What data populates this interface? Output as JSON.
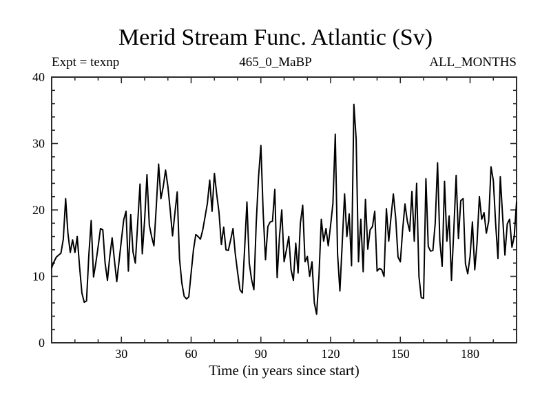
{
  "chart_data": {
    "type": "line",
    "title": "Merid Stream Func. Atlantic (Sv)",
    "annotations": {
      "left": "Expt = texnp",
      "center": "465_0_MaBP",
      "right": "ALL_MONTHS"
    },
    "xlabel": "Time (in years since start)",
    "ylabel": "",
    "xlim": [
      0,
      200
    ],
    "ylim": [
      0,
      40
    ],
    "x_major_ticks": [
      30,
      60,
      90,
      120,
      150,
      180
    ],
    "x_minor_interval": 10,
    "y_major_ticks": [
      0,
      10,
      20,
      30,
      40
    ],
    "y_minor_interval": 2,
    "grid": false,
    "legend": "none",
    "background_color": "#ffffff",
    "line_color": "#000000",
    "axis_color": "#2b2b2b",
    "series": [
      {
        "name": "meridional_stream_function_sv",
        "x_start": 0,
        "x_step": 1,
        "values": [
          11.3,
          12.2,
          12.9,
          13.2,
          13.5,
          15.6,
          21.7,
          16.5,
          13.6,
          15.5,
          13.6,
          16.0,
          11.5,
          7.5,
          6.1,
          6.3,
          13.2,
          18.4,
          9.9,
          12.0,
          14.5,
          17.2,
          17.0,
          12.0,
          9.4,
          13.0,
          15.8,
          12.5,
          9.2,
          12.3,
          15.5,
          18.5,
          19.8,
          10.8,
          19.3,
          13.7,
          12.0,
          18.0,
          23.9,
          13.4,
          18.5,
          25.3,
          17.7,
          16.0,
          14.6,
          20.5,
          26.9,
          21.7,
          23.5,
          26.0,
          23.5,
          20.0,
          16.1,
          19.5,
          22.7,
          12.7,
          9.0,
          7.0,
          6.6,
          6.9,
          10.5,
          14.0,
          16.3,
          16.0,
          15.6,
          17.0,
          19.0,
          21.0,
          24.5,
          19.8,
          25.5,
          22.4,
          19.6,
          14.8,
          17.4,
          14.0,
          13.9,
          15.5,
          17.2,
          13.4,
          10.6,
          8.0,
          7.5,
          14.0,
          21.2,
          12.0,
          9.5,
          8.0,
          18.0,
          25.0,
          29.7,
          19.6,
          12.5,
          17.5,
          18.2,
          18.3,
          23.1,
          9.8,
          16.0,
          20.0,
          12.2,
          14.0,
          16.0,
          11.0,
          9.4,
          15.0,
          10.5,
          18.0,
          20.7,
          12.2,
          13.0,
          10.0,
          12.2,
          6.0,
          4.3,
          10.0,
          18.6,
          15.3,
          17.2,
          14.6,
          17.7,
          21.0,
          31.4,
          13.4,
          7.8,
          15.0,
          22.4,
          16.0,
          19.4,
          11.6,
          35.9,
          30.7,
          12.2,
          18.6,
          10.7,
          21.6,
          14.1,
          17.0,
          17.5,
          19.8,
          10.8,
          11.2,
          11.0,
          10.0,
          20.2,
          15.3,
          19.0,
          22.4,
          18.8,
          12.9,
          12.2,
          17.0,
          20.9,
          18.3,
          16.8,
          22.8,
          15.3,
          24.0,
          10.0,
          6.8,
          6.7,
          24.7,
          14.5,
          13.8,
          13.9,
          18.0,
          27.1,
          15.3,
          11.5,
          24.3,
          15.3,
          19.1,
          9.4,
          17.0,
          25.2,
          15.7,
          21.4,
          21.7,
          11.9,
          10.4,
          13.0,
          18.2,
          11.0,
          15.0,
          22.0,
          18.6,
          19.6,
          16.5,
          18.3,
          26.5,
          24.4,
          18.0,
          12.7,
          25.0,
          19.0,
          13.2,
          17.9,
          18.6,
          14.4,
          16.0,
          21.2
        ]
      }
    ]
  }
}
